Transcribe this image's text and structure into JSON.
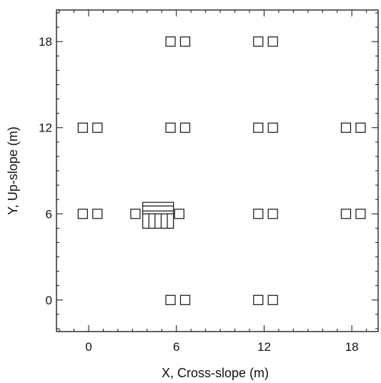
{
  "chart_data": {
    "type": "scatter",
    "title": "",
    "xlabel": "X, Cross-slope (m)",
    "ylabel": "Y, Up-slope (m)",
    "xlim": [
      -2.2,
      19.8
    ],
    "ylim": [
      -2.2,
      20.2
    ],
    "xticks": [
      0,
      6,
      12,
      18
    ],
    "yticks": [
      0,
      6,
      12,
      18
    ],
    "minor_tick_step": 1,
    "grid": false,
    "marker": "open-square",
    "series": [
      {
        "points": [
          {
            "x": 5.6,
            "y": 18
          },
          {
            "x": 6.6,
            "y": 18
          },
          {
            "x": 11.6,
            "y": 18
          },
          {
            "x": 12.6,
            "y": 18
          },
          {
            "x": -0.4,
            "y": 12
          },
          {
            "x": 0.6,
            "y": 12
          },
          {
            "x": 5.6,
            "y": 12
          },
          {
            "x": 6.6,
            "y": 12
          },
          {
            "x": 11.6,
            "y": 12
          },
          {
            "x": 12.6,
            "y": 12
          },
          {
            "x": 17.6,
            "y": 12
          },
          {
            "x": 18.6,
            "y": 12
          },
          {
            "x": -0.4,
            "y": 6
          },
          {
            "x": 0.6,
            "y": 6
          },
          {
            "x": 3.2,
            "y": 6
          },
          {
            "x": 6.2,
            "y": 6
          },
          {
            "x": 11.6,
            "y": 6
          },
          {
            "x": 12.6,
            "y": 6
          },
          {
            "x": 17.6,
            "y": 6
          },
          {
            "x": 18.6,
            "y": 6
          },
          {
            "x": 5.6,
            "y": 0
          },
          {
            "x": 6.6,
            "y": 0
          },
          {
            "x": 11.6,
            "y": 0
          },
          {
            "x": 12.6,
            "y": 0
          }
        ]
      }
    ],
    "feature": {
      "x_range": [
        3.7,
        5.8
      ],
      "y_range": [
        5.0,
        6.8
      ],
      "divider_y": [
        6.2,
        6.55
      ],
      "columns": 5
    }
  }
}
